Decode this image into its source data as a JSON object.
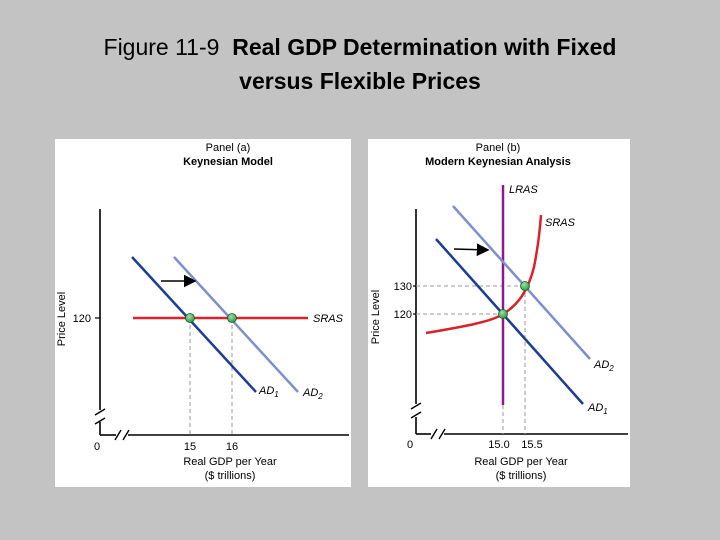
{
  "slide": {
    "figure_label": "Figure 11-9",
    "title_line1": "Real GDP Determination with Fixed",
    "title_line2": "versus Flexible Prices"
  },
  "panel_a": {
    "panel_label": "Panel (a)",
    "panel_title": "Keynesian Model",
    "y_axis_label": "Price Level",
    "x_axis_label_line1": "Real GDP per Year",
    "x_axis_label_line2": "($ trillions)",
    "origin_label": "0",
    "y_tick": "120",
    "x_ticks": [
      "15",
      "16"
    ],
    "curves": {
      "sras": "SRAS",
      "ad1_main": "AD",
      "ad1_sub": "1",
      "ad2_main": "AD",
      "ad2_sub": "2"
    },
    "colors": {
      "sras": "#d9232a",
      "ad1": "#1b3d94",
      "ad2": "#7f8fca",
      "point": "#2e9b3f"
    }
  },
  "panel_b": {
    "panel_label": "Panel (b)",
    "panel_title": "Modern Keynesian Analysis",
    "y_axis_label": "Price Level",
    "x_axis_label_line1": "Real GDP per Year",
    "x_axis_label_line2": "($ trillions)",
    "origin_label": "0",
    "y_ticks": [
      "130",
      "120"
    ],
    "x_ticks": [
      "15.0",
      "15.5"
    ],
    "curves": {
      "lras": "LRAS",
      "sras": "SRAS",
      "ad1_main": "AD",
      "ad1_sub": "1",
      "ad2_main": "AD",
      "ad2_sub": "2"
    },
    "colors": {
      "lras": "#8b1a8f",
      "sras": "#d9232a",
      "ad1": "#1b3d94",
      "ad2": "#7f8fca",
      "point": "#2e9b3f"
    }
  }
}
